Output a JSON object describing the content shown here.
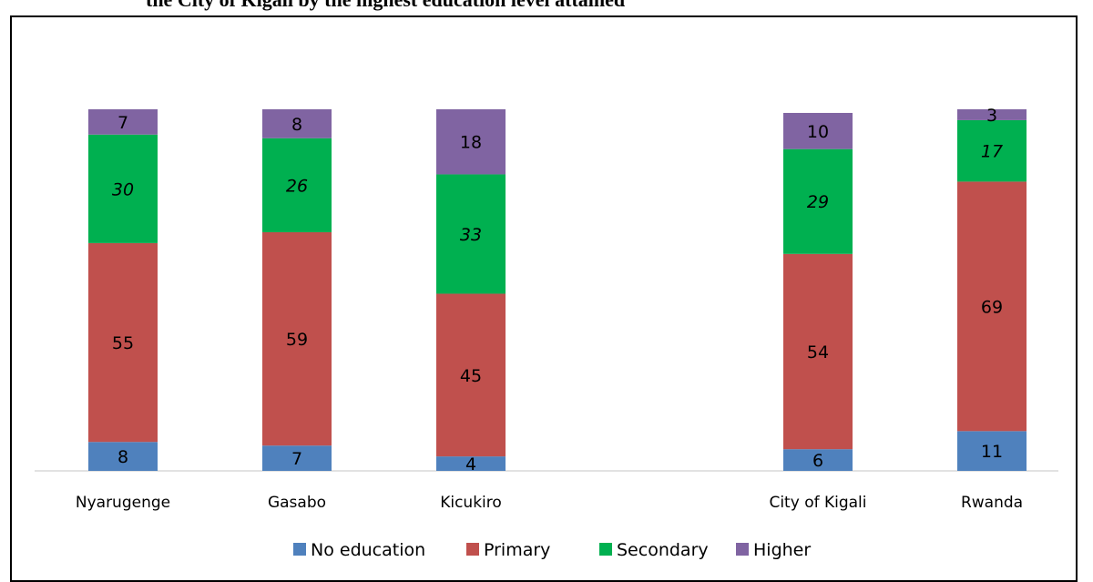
{
  "chart_data": {
    "type": "bar",
    "stacked": true,
    "title": "the City of Kigali by the highest education level attained",
    "categories": [
      "Nyarugenge",
      "Gasabo",
      "Kicukiro",
      "City of Kigali",
      "Rwanda"
    ],
    "series": [
      {
        "name": "No education",
        "color": "#4f81bd",
        "values": [
          8,
          7,
          4,
          6,
          11
        ],
        "italic": false
      },
      {
        "name": "Primary",
        "color": "#c0504d",
        "values": [
          55,
          59,
          45,
          54,
          69
        ],
        "italic": false
      },
      {
        "name": "Secondary",
        "color": "#00b050",
        "values": [
          30,
          26,
          33,
          29,
          17
        ],
        "italic": true
      },
      {
        "name": "Higher",
        "color": "#8064a2",
        "values": [
          7,
          8,
          18,
          10,
          3
        ],
        "italic": false
      }
    ],
    "ylim": [
      0,
      100
    ],
    "grid": false,
    "legend_position": "bottom"
  }
}
